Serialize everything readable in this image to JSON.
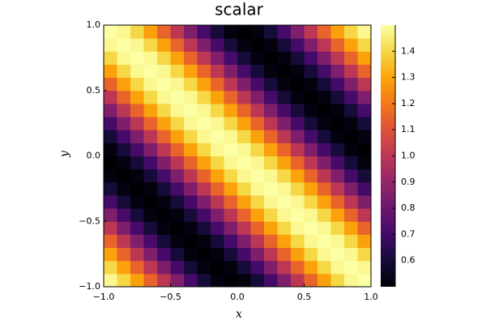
{
  "chart_data": {
    "type": "heatmap",
    "title": "scalar",
    "x_label": "x",
    "y_label": "y",
    "colormap": "inferno",
    "x": [
      -0.95,
      -0.85,
      -0.75,
      -0.65,
      -0.55,
      -0.45,
      -0.35,
      -0.25,
      -0.15,
      -0.05,
      0.05,
      0.15,
      0.25,
      0.35,
      0.45,
      0.55,
      0.65,
      0.75,
      0.85,
      0.95
    ],
    "y": [
      -0.95,
      -0.85,
      -0.75,
      -0.65,
      -0.55,
      -0.45,
      -0.35,
      -0.25,
      -0.15,
      -0.05,
      0.05,
      0.15,
      0.25,
      0.35,
      0.45,
      0.55,
      0.65,
      0.75,
      0.85,
      0.95
    ],
    "z": [
      [
        1.48,
        1.4,
        1.29,
        1.15,
        1,
        0.85,
        0.71,
        0.6,
        0.52,
        0.5,
        0.52,
        0.6,
        0.71,
        0.85,
        1,
        1.15,
        1.29,
        1.4,
        1.48,
        1.5
      ],
      [
        1.4,
        1.29,
        1.15,
        1,
        0.85,
        0.71,
        0.6,
        0.52,
        0.5,
        0.52,
        0.6,
        0.71,
        0.85,
        1,
        1.15,
        1.29,
        1.4,
        1.48,
        1.5,
        1.48
      ],
      [
        1.29,
        1.15,
        1,
        0.85,
        0.71,
        0.6,
        0.52,
        0.5,
        0.52,
        0.6,
        0.71,
        0.85,
        1,
        1.15,
        1.29,
        1.4,
        1.48,
        1.5,
        1.48,
        1.4
      ],
      [
        1.15,
        1,
        0.85,
        0.71,
        0.6,
        0.52,
        0.5,
        0.52,
        0.6,
        0.71,
        0.85,
        1,
        1.15,
        1.29,
        1.4,
        1.48,
        1.5,
        1.48,
        1.4,
        1.29
      ],
      [
        1,
        0.85,
        0.71,
        0.6,
        0.52,
        0.5,
        0.52,
        0.6,
        0.71,
        0.85,
        1,
        1.15,
        1.29,
        1.4,
        1.48,
        1.5,
        1.48,
        1.4,
        1.29,
        1.15
      ],
      [
        0.85,
        0.71,
        0.6,
        0.52,
        0.5,
        0.52,
        0.6,
        0.71,
        0.85,
        1,
        1.15,
        1.29,
        1.4,
        1.48,
        1.5,
        1.48,
        1.4,
        1.29,
        1.15,
        1
      ],
      [
        0.71,
        0.6,
        0.52,
        0.5,
        0.52,
        0.6,
        0.71,
        0.85,
        1,
        1.15,
        1.29,
        1.4,
        1.48,
        1.5,
        1.48,
        1.4,
        1.29,
        1.15,
        1,
        0.85
      ],
      [
        0.6,
        0.52,
        0.5,
        0.52,
        0.6,
        0.71,
        0.85,
        1,
        1.15,
        1.29,
        1.4,
        1.48,
        1.5,
        1.48,
        1.4,
        1.29,
        1.15,
        1,
        0.85,
        0.71
      ],
      [
        0.52,
        0.5,
        0.52,
        0.6,
        0.71,
        0.85,
        1,
        1.15,
        1.29,
        1.4,
        1.48,
        1.5,
        1.48,
        1.4,
        1.29,
        1.15,
        1,
        0.85,
        0.71,
        0.6
      ],
      [
        0.5,
        0.52,
        0.6,
        0.71,
        0.85,
        1,
        1.15,
        1.29,
        1.4,
        1.48,
        1.5,
        1.48,
        1.4,
        1.29,
        1.15,
        1,
        0.85,
        0.71,
        0.6,
        0.52
      ],
      [
        0.52,
        0.6,
        0.71,
        0.85,
        1,
        1.15,
        1.29,
        1.4,
        1.48,
        1.5,
        1.48,
        1.4,
        1.29,
        1.15,
        1,
        0.85,
        0.71,
        0.6,
        0.52,
        0.5
      ],
      [
        0.6,
        0.71,
        0.85,
        1,
        1.15,
        1.29,
        1.4,
        1.48,
        1.5,
        1.48,
        1.4,
        1.29,
        1.15,
        1,
        0.85,
        0.71,
        0.6,
        0.52,
        0.5,
        0.52
      ],
      [
        0.71,
        0.85,
        1,
        1.15,
        1.29,
        1.4,
        1.48,
        1.5,
        1.48,
        1.4,
        1.29,
        1.15,
        1,
        0.85,
        0.71,
        0.6,
        0.52,
        0.5,
        0.52,
        0.6
      ],
      [
        0.85,
        1,
        1.15,
        1.29,
        1.4,
        1.48,
        1.5,
        1.48,
        1.4,
        1.29,
        1.15,
        1,
        0.85,
        0.71,
        0.6,
        0.52,
        0.5,
        0.52,
        0.6,
        0.71
      ],
      [
        1,
        1.15,
        1.29,
        1.4,
        1.48,
        1.5,
        1.48,
        1.4,
        1.29,
        1.15,
        1,
        0.85,
        0.71,
        0.6,
        0.52,
        0.5,
        0.52,
        0.6,
        0.71,
        0.85
      ],
      [
        1.15,
        1.29,
        1.4,
        1.48,
        1.5,
        1.48,
        1.4,
        1.29,
        1.15,
        1,
        0.85,
        0.71,
        0.6,
        0.52,
        0.5,
        0.52,
        0.6,
        0.71,
        0.85,
        1
      ],
      [
        1.29,
        1.4,
        1.48,
        1.5,
        1.48,
        1.4,
        1.29,
        1.15,
        1,
        0.85,
        0.71,
        0.6,
        0.52,
        0.5,
        0.52,
        0.6,
        0.71,
        0.85,
        1,
        1.15
      ],
      [
        1.4,
        1.48,
        1.5,
        1.48,
        1.4,
        1.29,
        1.15,
        1,
        0.85,
        0.71,
        0.6,
        0.52,
        0.5,
        0.52,
        0.6,
        0.71,
        0.85,
        1,
        1.15,
        1.29
      ],
      [
        1.48,
        1.5,
        1.48,
        1.4,
        1.29,
        1.15,
        1,
        0.85,
        0.71,
        0.6,
        0.52,
        0.5,
        0.52,
        0.6,
        0.71,
        0.85,
        1,
        1.15,
        1.29,
        1.4
      ],
      [
        1.5,
        1.48,
        1.4,
        1.29,
        1.15,
        1,
        0.85,
        0.71,
        0.6,
        0.52,
        0.5,
        0.52,
        0.6,
        0.71,
        0.85,
        1,
        1.15,
        1.29,
        1.4,
        1.48
      ]
    ],
    "xlim": [
      -1,
      1
    ],
    "ylim": [
      -1,
      1
    ],
    "xticks": [
      {
        "value": -1,
        "label": "−1.0"
      },
      {
        "value": -0.5,
        "label": "−0.5"
      },
      {
        "value": 0,
        "label": "0.0"
      },
      {
        "value": 0.5,
        "label": "0.5"
      },
      {
        "value": 1,
        "label": "1.0"
      }
    ],
    "yticks": [
      {
        "value": -1,
        "label": "−1.0"
      },
      {
        "value": -0.5,
        "label": "−0.5"
      },
      {
        "value": 0,
        "label": "0.0"
      },
      {
        "value": 0.5,
        "label": "0.5"
      },
      {
        "value": 1,
        "label": "1.0"
      }
    ],
    "zlim": [
      0.5,
      1.5
    ],
    "zticks": [
      0.6,
      0.7,
      0.8,
      0.9,
      {
        "value": 1,
        "label": "1.0"
      },
      1.1,
      1.2,
      1.3,
      1.4
    ]
  }
}
